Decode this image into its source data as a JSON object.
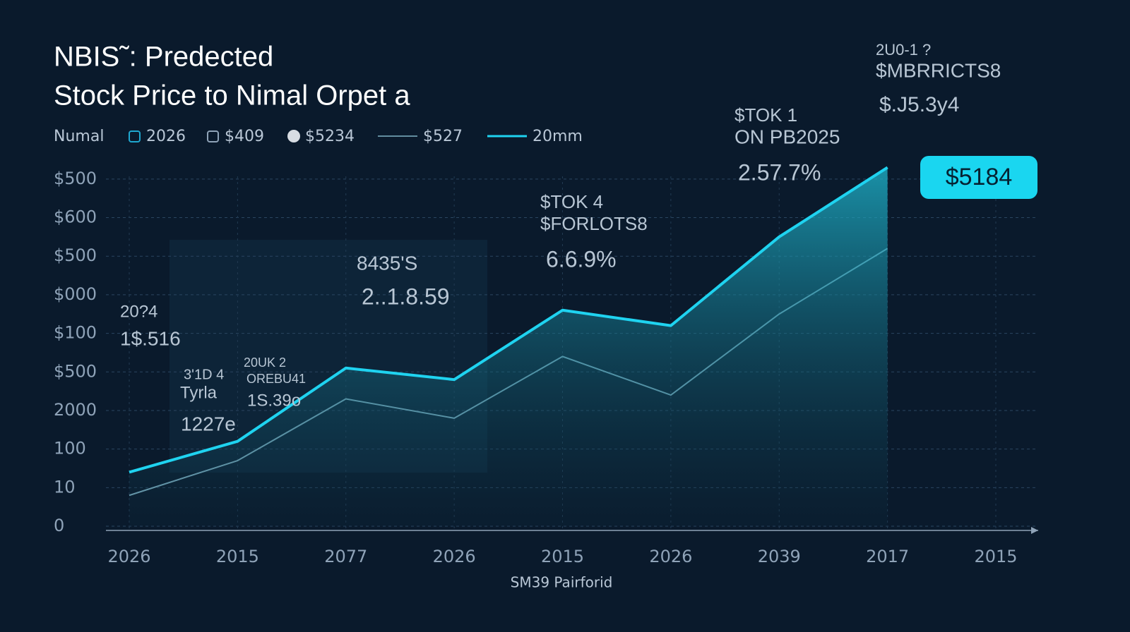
{
  "chart_data": {
    "type": "line",
    "title": [
      "NBIS˜: Predected",
      "Stock Price to Nimal Orpet a"
    ],
    "legend_title": "Numal",
    "legend_items": [
      "2026",
      "$409",
      "$5234"
    ],
    "categories": [
      "2026",
      "2015",
      "2077",
      "2026",
      "2015",
      "2026",
      "2039",
      "2017",
      "2015"
    ],
    "series": [
      {
        "name": "$527",
        "color": "#7fb3c6",
        "values": [
          0.8,
          1.7,
          3.3,
          2.8,
          4.4,
          3.4,
          5.5,
          7.2,
          null
        ]
      },
      {
        "name": "20mm",
        "color": "#1fd3f0",
        "values": [
          1.4,
          2.2,
          4.1,
          3.8,
          5.6,
          5.2,
          7.5,
          9.3,
          null
        ]
      }
    ],
    "ylim": [
      0,
      9.6
    ],
    "yticks": [
      {
        "value": 0,
        "label": "0"
      },
      {
        "value": 1,
        "label": "10"
      },
      {
        "value": 2,
        "label": "100"
      },
      {
        "value": 3,
        "label": "2000"
      },
      {
        "value": 4,
        "label": "$500"
      },
      {
        "value": 5,
        "label": "$100"
      },
      {
        "value": 6,
        "label": "$000"
      },
      {
        "value": 7,
        "label": "$500"
      },
      {
        "value": 8,
        "label": "$600"
      },
      {
        "value": 9,
        "label": "$500"
      }
    ],
    "grid": true,
    "x_label": "SM39 Pairforid",
    "highlight": "$5184",
    "annotations": [
      "2U0-1 ?",
      "$MBRRICTS8",
      "$.J5.3y4",
      "$TOK 1",
      "ON PB2025",
      "2.57.7%",
      "$TOK 4",
      "$FORLOTS8",
      "6.6.9%",
      "8435'S",
      "2..1.8.59",
      "20?4",
      "1$.516",
      "3'1D 4",
      "Tyrla",
      "1227e",
      "20UK 2",
      "OREBU41",
      "1S.39o"
    ]
  }
}
